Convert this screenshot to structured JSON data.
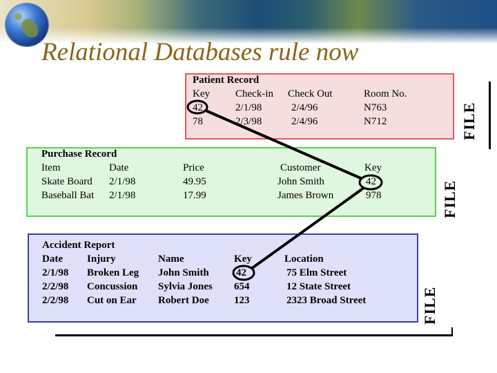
{
  "title": "Relational Databases rule now",
  "file_label": "FILE",
  "patient": {
    "title": "Patient Record",
    "headers": [
      "Key",
      "Check-in",
      "Check Out",
      "Room No."
    ],
    "rows": [
      [
        "42",
        "2/1/98",
        "2/4/96",
        "N763"
      ],
      [
        "78",
        "2/3/98",
        "2/4/96",
        "N712"
      ]
    ]
  },
  "purchase": {
    "title": "Purchase Record",
    "headers": [
      "Item",
      "Date",
      "Price",
      "Customer",
      "Key"
    ],
    "rows": [
      [
        "Skate Board",
        "2/1/98",
        "49.95",
        "John Smith",
        "42"
      ],
      [
        "Baseball Bat",
        "2/1/98",
        "17.99",
        "James Brown",
        "978"
      ]
    ]
  },
  "accident": {
    "title": "Accident Report",
    "headers": [
      "Date",
      "Injury",
      "Name",
      "Key",
      "Location"
    ],
    "rows": [
      [
        "2/1/98",
        "Broken Leg",
        "John Smith",
        "42",
        "75 Elm Street"
      ],
      [
        "2/2/98",
        "Concussion",
        "Sylvia Jones",
        "654",
        "12 State Street"
      ],
      [
        "2/2/98",
        "Cut on Ear",
        "Robert Doe",
        "123",
        "2323 Broad Street"
      ]
    ]
  },
  "colors": {
    "title": "#8a6418",
    "patient_fill": "#f7dede",
    "patient_border": "#e05a5a",
    "purchase_fill": "#dff7df",
    "purchase_border": "#4fd64f",
    "accident_fill": "#dfe1fb",
    "accident_border": "#3a3fa8"
  },
  "icons": [
    "globe-logo",
    "satellite-map-banner"
  ]
}
